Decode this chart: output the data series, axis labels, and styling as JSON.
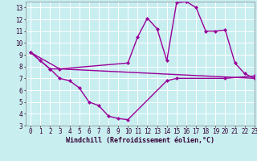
{
  "background_color": "#c8eef0",
  "grid_color": "#b0d8dc",
  "line_color": "#990099",
  "markersize": 2.5,
  "linewidth": 1.0,
  "series1_x": [
    0,
    1,
    2,
    3,
    10,
    11,
    12,
    13,
    14,
    15,
    16,
    17,
    18,
    19,
    20,
    21,
    22,
    23
  ],
  "series1_y": [
    9.2,
    8.5,
    7.8,
    7.8,
    8.3,
    10.5,
    12.1,
    11.2,
    8.5,
    13.4,
    13.5,
    13.0,
    11.0,
    11.0,
    11.1,
    8.3,
    7.4,
    7.0
  ],
  "series2_x": [
    0,
    2,
    3,
    4,
    5,
    6,
    7,
    8,
    9,
    10,
    14,
    15,
    20,
    23
  ],
  "series2_y": [
    9.2,
    7.8,
    7.0,
    6.8,
    6.2,
    5.0,
    4.7,
    3.8,
    3.6,
    3.5,
    6.8,
    7.0,
    7.0,
    7.2
  ],
  "series3_x": [
    0,
    3,
    23
  ],
  "series3_y": [
    9.2,
    7.8,
    7.0
  ],
  "xlim": [
    -0.5,
    23
  ],
  "ylim": [
    3,
    13.5
  ],
  "xticks": [
    0,
    1,
    2,
    3,
    4,
    5,
    6,
    7,
    8,
    9,
    10,
    11,
    12,
    13,
    14,
    15,
    16,
    17,
    18,
    19,
    20,
    21,
    22,
    23
  ],
  "yticks": [
    3,
    4,
    5,
    6,
    7,
    8,
    9,
    10,
    11,
    12,
    13
  ],
  "xlabel": "Windchill (Refroidissement éolien,°C)",
  "xlabel_fontsize": 6.0,
  "tick_fontsize": 5.5
}
